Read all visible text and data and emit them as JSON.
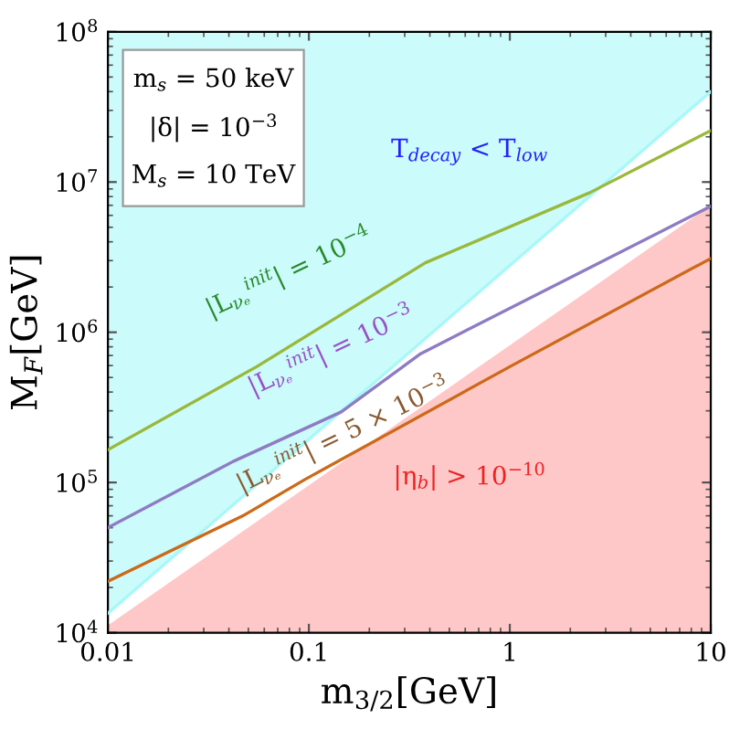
{
  "chart_data": {
    "type": "line",
    "log": "xy",
    "xlabel": "m$_{3/2}$[GeV]",
    "ylabel": "M$_{F}$[GeV]",
    "xlim": [
      0.01,
      10
    ],
    "ylim": [
      10000,
      100000000
    ],
    "xticks": [
      0.01,
      0.1,
      1,
      10
    ],
    "yticks": [
      {
        "value": 10000,
        "label": "10$^{4}$"
      },
      {
        "value": 100000,
        "label": "10$^{5}$"
      },
      {
        "value": 1000000,
        "label": "10$^{6}$"
      },
      {
        "value": 10000000,
        "label": "10$^{7}$"
      },
      {
        "value": 100000000,
        "label": "10$^{8}$"
      }
    ],
    "series": [
      {
        "color": "#a8f8f8",
        "x": [
          0.01,
          10
        ],
        "values": [
          13500,
          40000000
        ],
        "lower": [
          13500,
          40000000
        ],
        "upper": [
          100000000,
          100000000
        ]
      },
      {
        "type": "area",
        "color": "#ffc8c8",
        "x": [
          0.01,
          10
        ],
        "values": [
          11200,
          7000000
        ]
      },
      {
        "color": "#9ab83a",
        "x": [
          0.01,
          0.055,
          0.38,
          2.5,
          10
        ],
        "values": [
          165000,
          590000,
          2900000,
          8500000,
          22000000
        ]
      },
      {
        "color": "#8e7cc3",
        "x": [
          0.01,
          0.042,
          0.145,
          0.36,
          10
        ],
        "values": [
          50000,
          138000,
          295000,
          720000,
          6900000
        ]
      },
      {
        "color": "#cc6a1a",
        "x": [
          0.01,
          0.047,
          0.096,
          1.0,
          10
        ],
        "values": [
          22000,
          60000,
          105000,
          590000,
          3100000
        ]
      }
    ],
    "annotations": [
      "T$_{decay}$ < T$_{low}$",
      "|L$_{νₑ}$$^{init}$| = 10$^{−4}$",
      "|L$_{νₑ}$$^{init}$| = 10$^{−3}$",
      "|L$_{νₑ}$$^{init}$| = 5 × 10$^{−3}$",
      "|η$_{b}$| > 10$^{−10}$",
      "m$_{s}$ = 50 keV",
      "|δ| = 10$^{−3}$",
      "M$_{s}$ = 10 TeV"
    ]
  }
}
